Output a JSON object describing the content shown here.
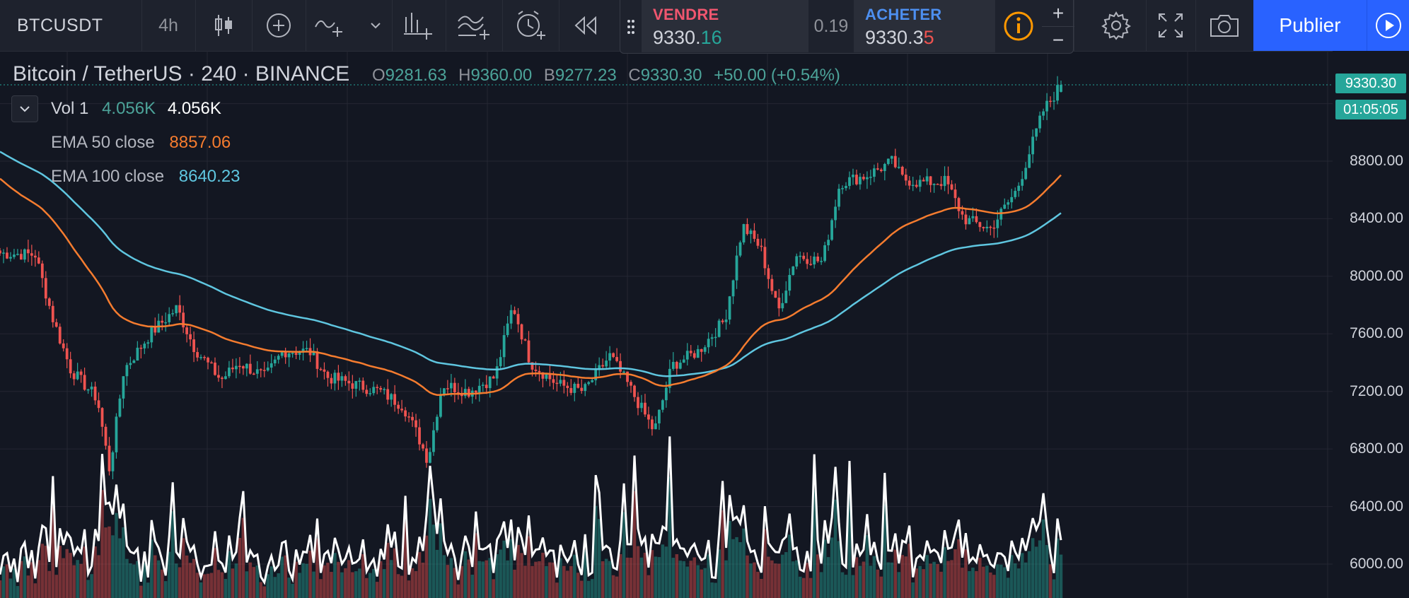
{
  "toolbar": {
    "symbol": "BTCUSDT",
    "interval": "4h",
    "icons": [
      "candles-icon",
      "add-indicator-icon",
      "drawing-icon",
      "chevron-down-icon",
      "compare-icon",
      "indicators-icon",
      "alert-icon",
      "replay-rewind-icon",
      "settings-icon",
      "fullscreen-icon",
      "camera-icon",
      "play-icon"
    ],
    "publish_label": "Publier"
  },
  "trade": {
    "sell_label": "VENDRE",
    "sell_price_main": "9330.",
    "sell_price_last": "16",
    "spread": "0.19",
    "buy_label": "ACHETER",
    "buy_price_main": "9330.3",
    "buy_price_last": "5",
    "plus": "+",
    "minus": "−"
  },
  "legend": {
    "title": "Bitcoin / TetherUS · 240 · BINANCE",
    "open_key": "O",
    "open": "9281.63",
    "high_key": "H",
    "high": "9360.00",
    "low_key": "B",
    "low": "9277.23",
    "close_key": "C",
    "close": "9330.30",
    "change": "+50.00 (+0.54%)",
    "vol_label": "Vol 1",
    "vol_value_green": "4.056K",
    "vol_value_white": "4.056K",
    "ema50_label": "EMA 50 close",
    "ema50_value": "8857.06",
    "ema100_label": "EMA 100 close",
    "ema100_value": "8640.23"
  },
  "colors": {
    "background": "#131722",
    "up": "#26a69a",
    "down": "#ef5350",
    "ema50": "#f57c2f",
    "ema100": "#5fc6e0",
    "accent_blue": "#2962ff",
    "sell": "#f0566f",
    "buy": "#4d8ff0",
    "info": "#ff9800"
  },
  "price_scale": {
    "ticks": [
      "8800.00",
      "8400.00",
      "8000.00",
      "7600.00",
      "7200.00",
      "6800.00",
      "6400.00",
      "6000.00"
    ],
    "last_price": "9330.30",
    "countdown": "01:05:05"
  },
  "chart_data": {
    "type": "candlestick",
    "symbol": "BTCUSDT",
    "interval": "240",
    "ylim": [
      5900,
      9500
    ],
    "candle_count": 302,
    "anchors_close": [
      [
        0,
        8160
      ],
      [
        20,
        8150
      ],
      [
        30,
        7700
      ],
      [
        40,
        7350
      ],
      [
        55,
        7150
      ],
      [
        62,
        6650
      ],
      [
        70,
        7350
      ],
      [
        85,
        7600
      ],
      [
        100,
        7780
      ],
      [
        110,
        7500
      ],
      [
        125,
        7280
      ],
      [
        135,
        7400
      ],
      [
        150,
        7300
      ],
      [
        160,
        7480
      ],
      [
        175,
        7480
      ],
      [
        185,
        7300
      ],
      [
        200,
        7250
      ],
      [
        215,
        7200
      ],
      [
        228,
        7100
      ],
      [
        236,
        6900
      ],
      [
        242,
        6720
      ],
      [
        250,
        7250
      ],
      [
        265,
        7200
      ],
      [
        280,
        7300
      ],
      [
        290,
        7800
      ],
      [
        300,
        7400
      ],
      [
        315,
        7250
      ],
      [
        330,
        7200
      ],
      [
        345,
        7450
      ],
      [
        355,
        7250
      ],
      [
        370,
        6920
      ],
      [
        380,
        7380
      ],
      [
        395,
        7480
      ],
      [
        410,
        7700
      ],
      [
        420,
        8350
      ],
      [
        430,
        8200
      ],
      [
        440,
        7750
      ],
      [
        450,
        8150
      ],
      [
        465,
        8100
      ],
      [
        475,
        8650
      ],
      [
        490,
        8700
      ],
      [
        505,
        8800
      ],
      [
        510,
        8680
      ],
      [
        520,
        8650
      ],
      [
        535,
        8660
      ],
      [
        545,
        8400
      ],
      [
        560,
        8330
      ],
      [
        575,
        8600
      ],
      [
        590,
        9150
      ],
      [
        600,
        9330
      ]
    ],
    "ema50_close": 8857.06,
    "ema100_close": 8640.23,
    "volume_last": "4.056K",
    "last": {
      "open": 9281.63,
      "high": 9360.0,
      "low": 9277.23,
      "close": 9330.3
    }
  }
}
